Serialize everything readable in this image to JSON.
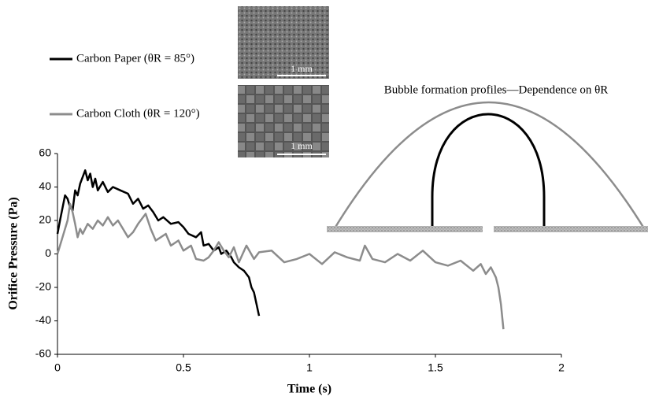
{
  "chart_data": {
    "type": "line",
    "xlabel": "Time (s)",
    "ylabel": "Orifice Pressure (Pa)",
    "annotation": "Bubble formation profiles—Dependence on θR",
    "image_labels": [
      "1 mm",
      "1 mm"
    ],
    "xlim": [
      0,
      2
    ],
    "xticks": [
      0,
      0.5,
      1,
      1.5,
      2
    ],
    "ylim": [
      -60,
      60
    ],
    "yticks": [
      -60,
      -40,
      -20,
      0,
      20,
      40,
      60
    ],
    "series": [
      {
        "name": "Carbon Paper (θR = 85°)",
        "color": "#000000",
        "x": [
          0,
          0.01,
          0.03,
          0.04,
          0.05,
          0.06,
          0.07,
          0.08,
          0.09,
          0.1,
          0.11,
          0.12,
          0.13,
          0.14,
          0.15,
          0.16,
          0.18,
          0.2,
          0.22,
          0.25,
          0.28,
          0.3,
          0.32,
          0.34,
          0.36,
          0.38,
          0.4,
          0.42,
          0.45,
          0.48,
          0.5,
          0.52,
          0.55,
          0.57,
          0.58,
          0.6,
          0.62,
          0.64,
          0.65,
          0.67,
          0.69,
          0.7,
          0.72,
          0.74,
          0.76,
          0.77,
          0.78,
          0.79,
          0.8
        ],
        "values": [
          12,
          20,
          35,
          33,
          28,
          26,
          38,
          35,
          42,
          46,
          50,
          44,
          48,
          40,
          45,
          38,
          43,
          37,
          40,
          38,
          36,
          30,
          33,
          27,
          29,
          25,
          20,
          22,
          18,
          19,
          16,
          12,
          10,
          13,
          5,
          6,
          2,
          4,
          0,
          2,
          -2,
          -5,
          -8,
          -10,
          -14,
          -20,
          -23,
          -30,
          -37
        ]
      },
      {
        "name": "Carbon Cloth (θR = 120°)",
        "color": "#8c8c8c",
        "x": [
          0,
          0.02,
          0.04,
          0.05,
          0.06,
          0.07,
          0.08,
          0.09,
          0.1,
          0.12,
          0.14,
          0.16,
          0.18,
          0.2,
          0.22,
          0.24,
          0.26,
          0.28,
          0.3,
          0.32,
          0.35,
          0.37,
          0.39,
          0.41,
          0.43,
          0.45,
          0.48,
          0.5,
          0.53,
          0.55,
          0.58,
          0.6,
          0.62,
          0.64,
          0.66,
          0.68,
          0.7,
          0.72,
          0.75,
          0.78,
          0.8,
          0.85,
          0.9,
          0.95,
          1.0,
          1.05,
          1.1,
          1.15,
          1.2,
          1.22,
          1.25,
          1.3,
          1.35,
          1.4,
          1.45,
          1.5,
          1.55,
          1.6,
          1.65,
          1.68,
          1.7,
          1.72,
          1.74,
          1.75,
          1.76,
          1.77
        ],
        "values": [
          0,
          10,
          20,
          30,
          25,
          18,
          10,
          15,
          12,
          18,
          15,
          20,
          17,
          22,
          17,
          20,
          15,
          10,
          13,
          18,
          24,
          15,
          8,
          10,
          12,
          5,
          8,
          2,
          5,
          -3,
          -4,
          -2,
          2,
          7,
          2,
          -2,
          4,
          -5,
          5,
          -3,
          1,
          2,
          -5,
          -3,
          0,
          -6,
          1,
          -2,
          -4,
          5,
          -3,
          -5,
          0,
          -4,
          2,
          -5,
          -7,
          -4,
          -10,
          -6,
          -12,
          -8,
          -14,
          -20,
          -30,
          -45
        ]
      }
    ]
  }
}
